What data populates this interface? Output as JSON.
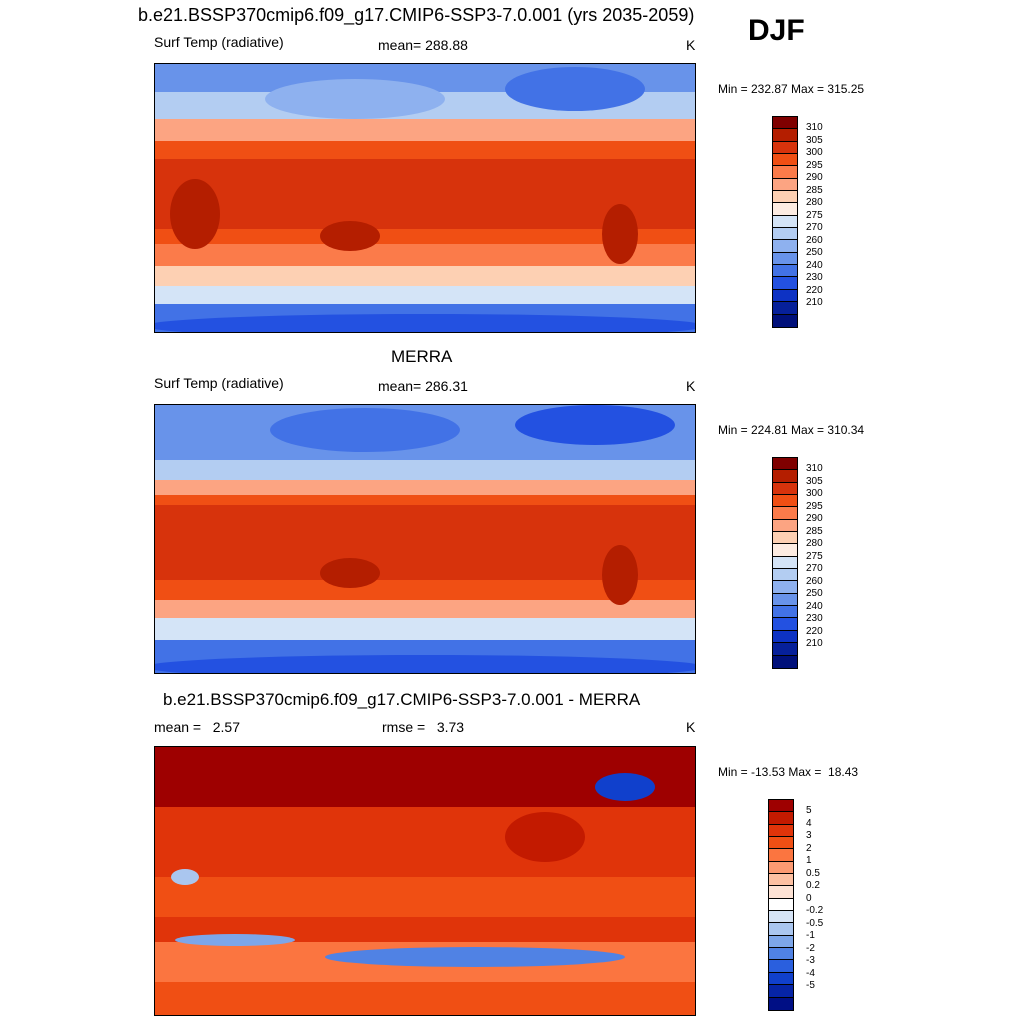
{
  "header": {
    "main_title": "b.e21.BSSP370cmip6.f09_g17.CMIP6-SSP3-7.0.001 (yrs 2035-2059)",
    "season": "DJF"
  },
  "panels": [
    {
      "title": "",
      "left_label": "Surf Temp (radiative)",
      "center_label": "mean= 288.88",
      "units": "K",
      "range_text": "Min = 232.87 Max = 315.25",
      "palette": [
        "#7f0000",
        "#b41e00",
        "#d7330c",
        "#f04f14",
        "#fb7b4a",
        "#fca482",
        "#fdd0b3",
        "#fdece2",
        "#d4e4f7",
        "#b3cdf2",
        "#8eb1ef",
        "#6893ea",
        "#4272e6",
        "#2351e1",
        "#0d32c4",
        "#06209a",
        "#00107a"
      ],
      "ticks": [
        "310",
        "305",
        "300",
        "295",
        "290",
        "285",
        "280",
        "275",
        "270",
        "260",
        "250",
        "240",
        "230",
        "220",
        "210"
      ]
    },
    {
      "title": "MERRA",
      "left_label": "Surf Temp (radiative)",
      "center_label": "mean= 286.31",
      "units": "K",
      "range_text": "Min = 224.81 Max = 310.34",
      "palette": [
        "#7f0000",
        "#b41e00",
        "#d7330c",
        "#f04f14",
        "#fb7b4a",
        "#fca482",
        "#fdd0b3",
        "#fdece2",
        "#d4e4f7",
        "#b3cdf2",
        "#8eb1ef",
        "#6893ea",
        "#4272e6",
        "#2351e1",
        "#0d32c4",
        "#06209a",
        "#00107a"
      ],
      "ticks": [
        "310",
        "305",
        "300",
        "295",
        "290",
        "285",
        "280",
        "275",
        "270",
        "260",
        "250",
        "240",
        "230",
        "220",
        "210"
      ]
    },
    {
      "title": "b.e21.BSSP370cmip6.f09_g17.CMIP6-SSP3-7.0.001 - MERRA",
      "left_label": "mean =   2.57",
      "center_label": "rmse =   3.73",
      "units": "K",
      "range_text": "Min = -13.53 Max =  18.43",
      "palette": [
        "#9e0000",
        "#c31a00",
        "#e0340a",
        "#f04f14",
        "#fb7540",
        "#fc9a72",
        "#fdc0a2",
        "#fde2d4",
        "#ffffff",
        "#d6e4f6",
        "#aac6ef",
        "#7da6e9",
        "#5082e4",
        "#2a5fde",
        "#1040cc",
        "#0624a6",
        "#000f85"
      ],
      "ticks": [
        "5",
        "4",
        "3",
        "2",
        "1",
        "0.5",
        "0.2",
        "0",
        "-0.2",
        "-0.5",
        "-1",
        "-2",
        "-3",
        "-4",
        "-5"
      ]
    }
  ]
}
